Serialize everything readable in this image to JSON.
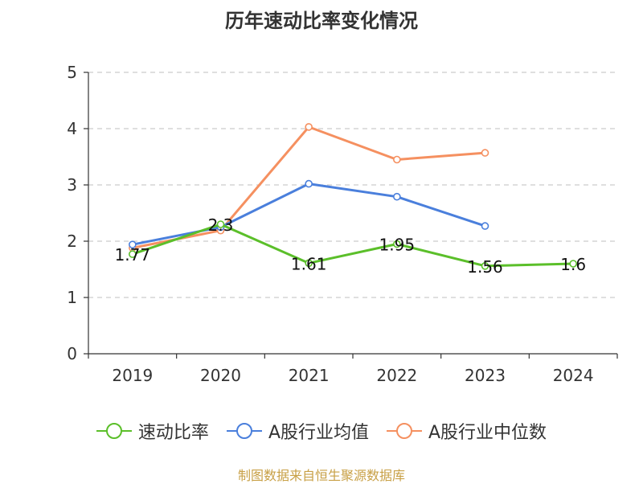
{
  "chart_data": {
    "type": "line",
    "title": "历年速动比率变化情况",
    "categories": [
      "2019",
      "2020",
      "2021",
      "2022",
      "2023",
      "2024"
    ],
    "ylim": [
      0,
      5
    ],
    "yticks": [
      "0",
      "1",
      "2",
      "3",
      "4",
      "5"
    ],
    "grid": true,
    "legend_position": "bottom",
    "series": [
      {
        "name": "速动比率",
        "color": "#5bbf2a",
        "values": [
          1.77,
          2.3,
          1.61,
          1.95,
          1.56,
          1.6
        ],
        "labels": [
          "1.77",
          "2.3",
          "1.61",
          "1.95",
          "1.56",
          "1.6"
        ]
      },
      {
        "name": "A股行业均值",
        "color": "#4a7fdc",
        "values": [
          1.94,
          2.25,
          3.02,
          2.79,
          2.27,
          null
        ],
        "labels": []
      },
      {
        "name": "A股行业中位数",
        "color": "#f59060",
        "values": [
          1.88,
          2.19,
          4.03,
          3.45,
          3.57,
          null
        ],
        "labels": []
      }
    ]
  },
  "source_note": "制图数据来自恒生聚源数据库"
}
